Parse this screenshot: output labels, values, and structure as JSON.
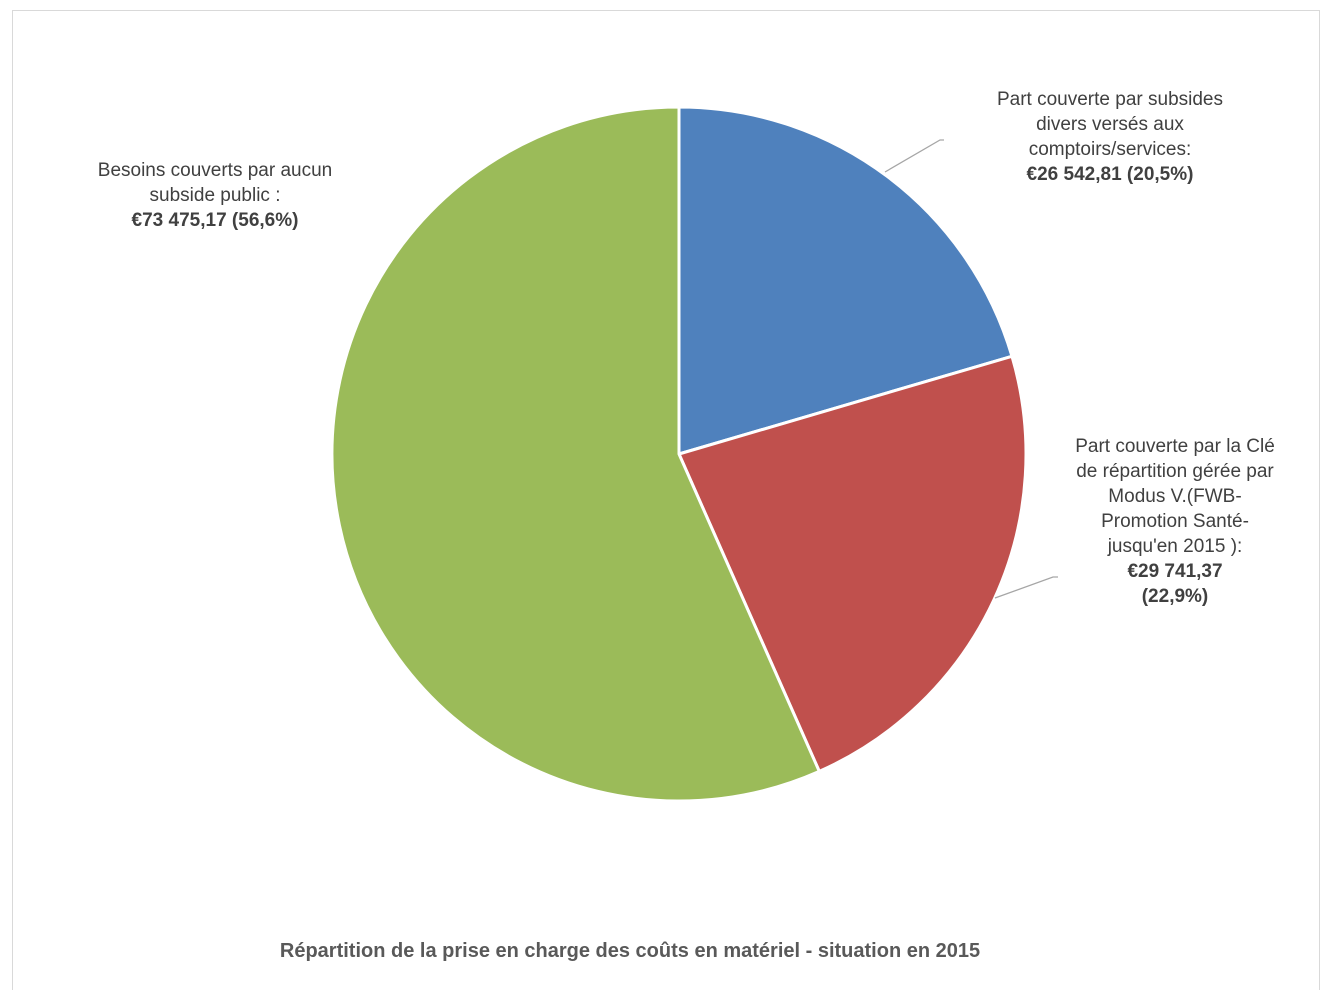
{
  "chart_data": {
    "type": "pie",
    "title": "Répartition de la prise en charge des coûts en matériel - situation en 2015",
    "start_angle_deg": 0,
    "direction": "clockwise",
    "slices": [
      {
        "label_lines": [
          "Part couverte par subsides",
          "divers versés aux",
          "comptoirs/services:"
        ],
        "value": 26542.81,
        "value_text_lines": [
          "€26 542,81  (20,5%)"
        ],
        "percent": 20.5,
        "color": "#4F81BD"
      },
      {
        "label_lines": [
          "Part couverte par la Clé",
          "de répartition gérée par",
          "Modus V.(FWB-",
          "Promotion Santé-",
          "jusqu'en 2015 ):"
        ],
        "value": 29741.37,
        "value_text_lines": [
          "€29 741,37",
          "(22,9%)"
        ],
        "percent": 22.9,
        "color": "#C0504D"
      },
      {
        "label_lines": [
          "Besoins couverts par aucun",
          "subside public :"
        ],
        "value": 73475.17,
        "value_text_lines": [
          "€73 475,17  (56,6%)"
        ],
        "percent": 56.6,
        "color": "#9BBB59"
      }
    ],
    "legend": "none"
  }
}
